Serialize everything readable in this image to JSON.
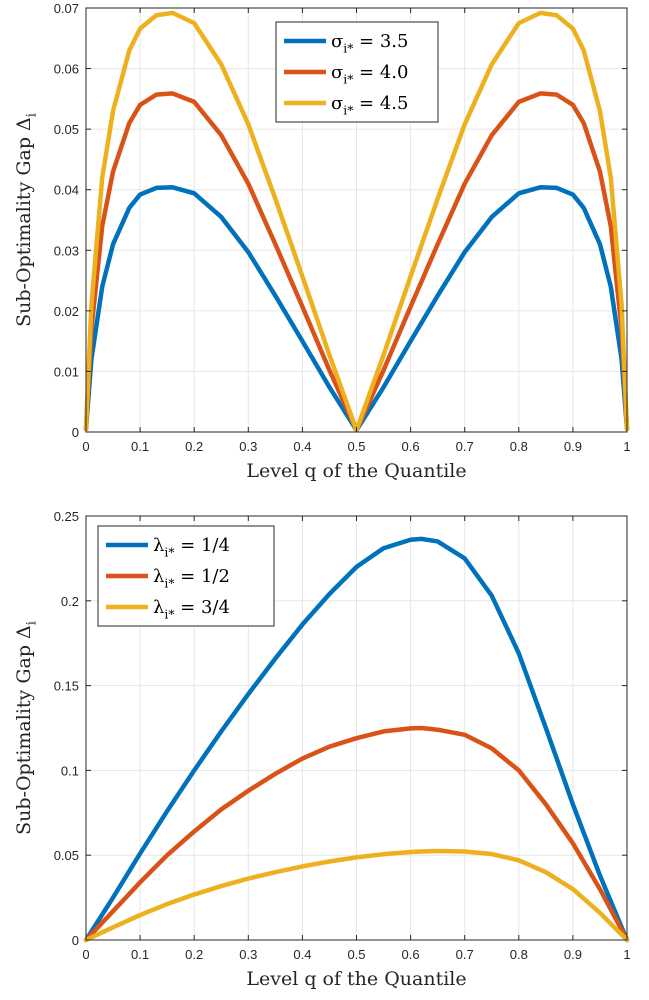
{
  "chart_data": [
    {
      "type": "line",
      "xlabel": "Level q of the Quantile",
      "ylabel": "Sub-Optimality Gap Δ_i",
      "xlim": [
        0,
        1
      ],
      "ylim": [
        0,
        0.07
      ],
      "xticks": [
        0,
        0.1,
        0.2,
        0.3,
        0.4,
        0.5,
        0.6,
        0.7,
        0.8,
        0.9,
        1
      ],
      "xtick_labels": [
        "0",
        "0.1",
        "0.2",
        "0.3",
        "0.4",
        "0.5",
        "0.6",
        "0.7",
        "0.8",
        "0.9",
        "1"
      ],
      "yticks": [
        0,
        0.01,
        0.02,
        0.03,
        0.04,
        0.05,
        0.06,
        0.07
      ],
      "ytick_labels": [
        "0",
        "0.01",
        "0.02",
        "0.03",
        "0.04",
        "0.05",
        "0.06",
        "0.07"
      ],
      "grid": true,
      "legend_position": "top-center",
      "x": [
        0,
        0.01,
        0.03,
        0.05,
        0.08,
        0.1,
        0.13,
        0.16,
        0.2,
        0.25,
        0.3,
        0.35,
        0.4,
        0.45,
        0.5,
        0.55,
        0.6,
        0.65,
        0.7,
        0.75,
        0.8,
        0.84,
        0.87,
        0.9,
        0.92,
        0.95,
        0.97,
        0.99,
        1
      ],
      "series": [
        {
          "name": "σ_{i*} = 3.5",
          "color": "#0072BD",
          "values": [
            0.0005,
            0.012,
            0.024,
            0.031,
            0.037,
            0.0392,
            0.0403,
            0.0404,
            0.0394,
            0.0355,
            0.0297,
            0.0225,
            0.015,
            0.0074,
            0.0003,
            0.0074,
            0.015,
            0.0225,
            0.0297,
            0.0355,
            0.0394,
            0.0404,
            0.0403,
            0.0392,
            0.037,
            0.031,
            0.024,
            0.012,
            0.0005
          ]
        },
        {
          "name": "σ_{i*} = 4.0",
          "color": "#D95319",
          "values": [
            0.0005,
            0.017,
            0.034,
            0.043,
            0.051,
            0.054,
            0.0557,
            0.0559,
            0.0545,
            0.049,
            0.041,
            0.031,
            0.0207,
            0.0102,
            0.0003,
            0.0102,
            0.0207,
            0.031,
            0.041,
            0.049,
            0.0545,
            0.0559,
            0.0557,
            0.054,
            0.051,
            0.043,
            0.034,
            0.017,
            0.0005
          ]
        },
        {
          "name": "σ_{i*} = 4.5",
          "color": "#EDB120",
          "values": [
            0.0005,
            0.021,
            0.042,
            0.053,
            0.063,
            0.0666,
            0.0688,
            0.0692,
            0.0675,
            0.0607,
            0.0508,
            0.0385,
            0.0257,
            0.0127,
            0.0003,
            0.0127,
            0.0257,
            0.0385,
            0.0508,
            0.0607,
            0.0675,
            0.0692,
            0.0688,
            0.0666,
            0.063,
            0.053,
            0.042,
            0.021,
            0.0005
          ]
        }
      ]
    },
    {
      "type": "line",
      "xlabel": "Level q of the Quantile",
      "ylabel": "Sub-Optimality Gap Δ_i",
      "xlim": [
        0,
        1
      ],
      "ylim": [
        0,
        0.25
      ],
      "xticks": [
        0,
        0.1,
        0.2,
        0.3,
        0.4,
        0.5,
        0.6,
        0.7,
        0.8,
        0.9,
        1
      ],
      "xtick_labels": [
        "0",
        "0.1",
        "0.2",
        "0.3",
        "0.4",
        "0.5",
        "0.6",
        "0.7",
        "0.8",
        "0.9",
        "1"
      ],
      "yticks": [
        0,
        0.05,
        0.1,
        0.15,
        0.2,
        0.25
      ],
      "ytick_labels": [
        "0",
        "0.05",
        "0.1",
        "0.15",
        "0.2",
        "0.25"
      ],
      "grid": true,
      "legend_position": "top-left",
      "x": [
        0,
        0.05,
        0.1,
        0.15,
        0.2,
        0.25,
        0.3,
        0.35,
        0.4,
        0.45,
        0.5,
        0.55,
        0.6,
        0.62,
        0.65,
        0.7,
        0.75,
        0.8,
        0.85,
        0.9,
        0.95,
        1
      ],
      "series": [
        {
          "name": "λ_{i*} = 1/4",
          "color": "#0072BD",
          "values": [
            0,
            0.025,
            0.051,
            0.076,
            0.1,
            0.123,
            0.145,
            0.166,
            0.186,
            0.204,
            0.22,
            0.231,
            0.236,
            0.2365,
            0.235,
            0.225,
            0.203,
            0.169,
            0.125,
            0.08,
            0.038,
            0
          ]
        },
        {
          "name": "λ_{i*} = 1/2",
          "color": "#D95319",
          "values": [
            0,
            0.017,
            0.034,
            0.05,
            0.064,
            0.077,
            0.088,
            0.098,
            0.107,
            0.114,
            0.119,
            0.123,
            0.1248,
            0.125,
            0.124,
            0.121,
            0.113,
            0.1,
            0.08,
            0.057,
            0.03,
            0
          ]
        },
        {
          "name": "λ_{i*} = 3/4",
          "color": "#EDB120",
          "values": [
            0,
            0.0075,
            0.0147,
            0.0212,
            0.0268,
            0.0318,
            0.0362,
            0.04,
            0.0434,
            0.0463,
            0.0487,
            0.0506,
            0.0519,
            0.0522,
            0.0525,
            0.0522,
            0.0507,
            0.047,
            0.04,
            0.03,
            0.016,
            0
          ]
        }
      ]
    }
  ]
}
